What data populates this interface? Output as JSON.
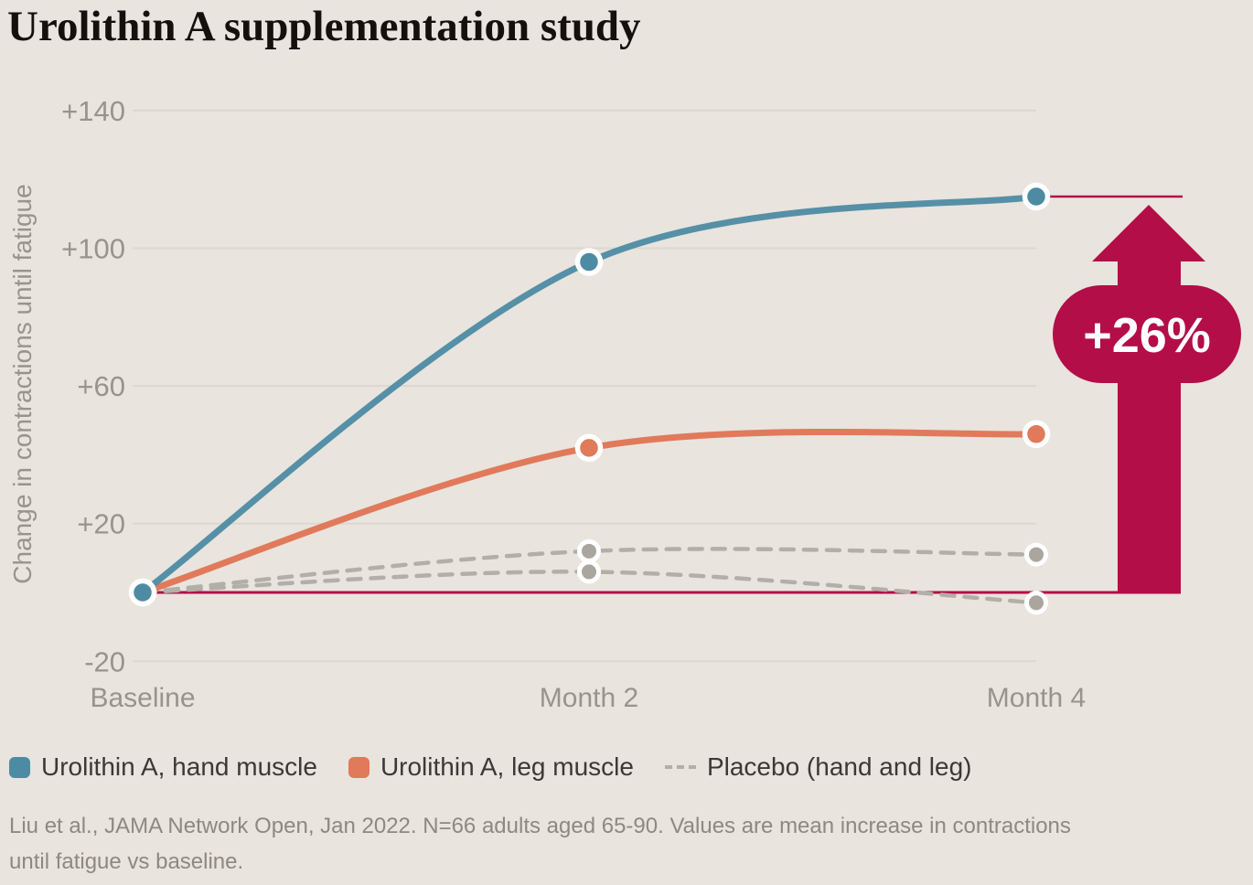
{
  "title": "Urolithin A supplementation study",
  "chart_data": {
    "type": "line",
    "title": "Urolithin A supplementation study",
    "categories": [
      "Baseline",
      "Month 2",
      "Month 4"
    ],
    "series": [
      {
        "name": "Placebo (hand)",
        "color": "#b3afa6",
        "dot_color": "#aaa69e",
        "style": "dashed",
        "values": [
          0,
          12,
          11
        ]
      },
      {
        "name": "Placebo (leg)",
        "color": "#b3afa6",
        "dot_color": "#aaa69e",
        "style": "dashed",
        "values": [
          0,
          6,
          -3
        ]
      },
      {
        "name": "Urolithin A, leg muscle",
        "color": "#e07a5a",
        "dot_color": "#e07a5a",
        "style": "solid",
        "values": [
          0,
          42,
          46
        ]
      },
      {
        "name": "Urolithin A, hand muscle",
        "color": "#5590a7",
        "dot_color": "#4d8ba3",
        "style": "solid",
        "values": [
          0,
          96,
          115
        ]
      }
    ],
    "xlabel": "",
    "ylabel": "Change in contractions until fatigue",
    "ylim": [
      -30,
      150
    ],
    "yticks": [
      {
        "value": -20,
        "label": "-20"
      },
      {
        "value": 20,
        "label": "+20"
      },
      {
        "value": 60,
        "label": "+60"
      },
      {
        "value": 100,
        "label": "+100"
      },
      {
        "value": 140,
        "label": "+140"
      }
    ],
    "grid": true,
    "legend_position": "bottom",
    "colors": {
      "background": "#e9e4de",
      "gridline": "#dcd7d1",
      "axis_text": "#98948c",
      "accent": "#b30e47",
      "dot_ring": "#ffffff"
    },
    "reference_lines": [
      {
        "value": 0,
        "color": "#b30e47"
      },
      {
        "value": 115,
        "color": "#b30e47"
      }
    ],
    "annotation": {
      "label": "+26%",
      "color": "#b30e47",
      "text_color": "#ffffff",
      "from_value": 0,
      "to_value": 115
    }
  },
  "legend": {
    "items": [
      {
        "label": "Urolithin A, hand muscle",
        "marker": "square",
        "color": "#4d8ba3"
      },
      {
        "label": "Urolithin A, leg muscle",
        "marker": "square",
        "color": "#e07a5a"
      },
      {
        "label": "Placebo (hand and leg)",
        "marker": "dashed-line",
        "color": "#b3afa6"
      }
    ]
  },
  "footnote": "Liu et al., JAMA Network Open, Jan 2022. N=66 adults aged 65-90. Values are mean increase in contractions until fatigue vs baseline."
}
